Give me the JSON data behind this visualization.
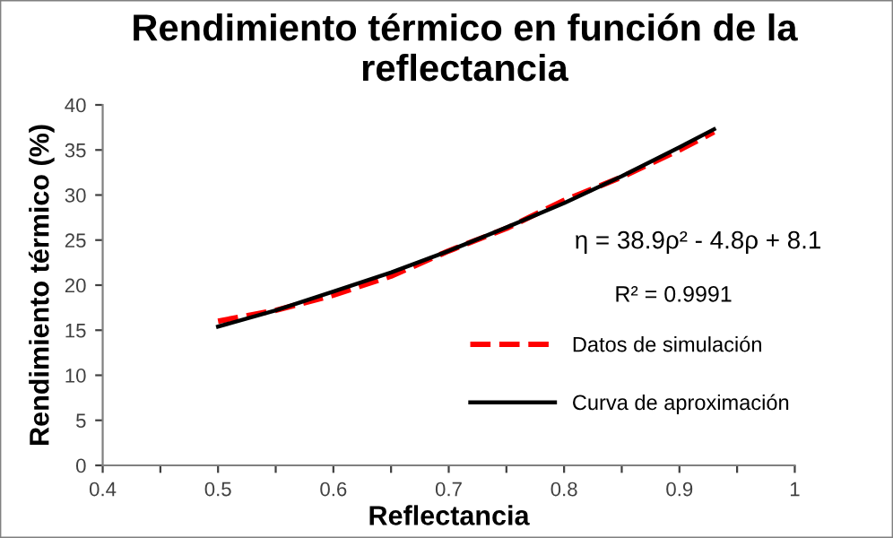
{
  "chart_data": {
    "type": "line",
    "title": "Rendimiento térmico en función de la reflectancia",
    "xlabel": "Reflectancia",
    "ylabel": "Rendimiento térmico (%)",
    "x": [
      0.5,
      0.55,
      0.6,
      0.65,
      0.7,
      0.75,
      0.8,
      0.85,
      0.9,
      0.93
    ],
    "series": [
      {
        "name": "Datos de simulación",
        "color": "#ff0000",
        "line_style": "dashed",
        "values": [
          16.0,
          17.2,
          18.9,
          21.0,
          23.8,
          26.3,
          29.4,
          32.0,
          35.0,
          37.0
        ]
      },
      {
        "name": "Curva de aproximación",
        "color": "#000000",
        "line_style": "solid",
        "values": [
          15.4,
          17.2,
          19.3,
          21.4,
          23.8,
          26.4,
          29.1,
          32.1,
          35.3,
          37.3
        ]
      }
    ],
    "annotations": [
      "η = 38.9ρ² - 4.8ρ + 8.1",
      "R² = 0.9991"
    ],
    "xlim": [
      0.4,
      1
    ],
    "ylim": [
      0,
      40
    ],
    "xticks": [
      0.4,
      {
        "value": 0.45,
        "label": null
      },
      0.5,
      {
        "value": 0.55,
        "label": null
      },
      0.6,
      {
        "value": 0.65,
        "label": null
      },
      0.7,
      {
        "value": 0.75,
        "label": null
      },
      0.8,
      {
        "value": 0.85,
        "label": null
      },
      0.9,
      {
        "value": 0.95,
        "label": null
      },
      1
    ],
    "yticks": [
      0,
      5,
      10,
      15,
      20,
      25,
      30,
      35,
      40
    ],
    "grid": false,
    "legend": "right",
    "marker": "none"
  }
}
